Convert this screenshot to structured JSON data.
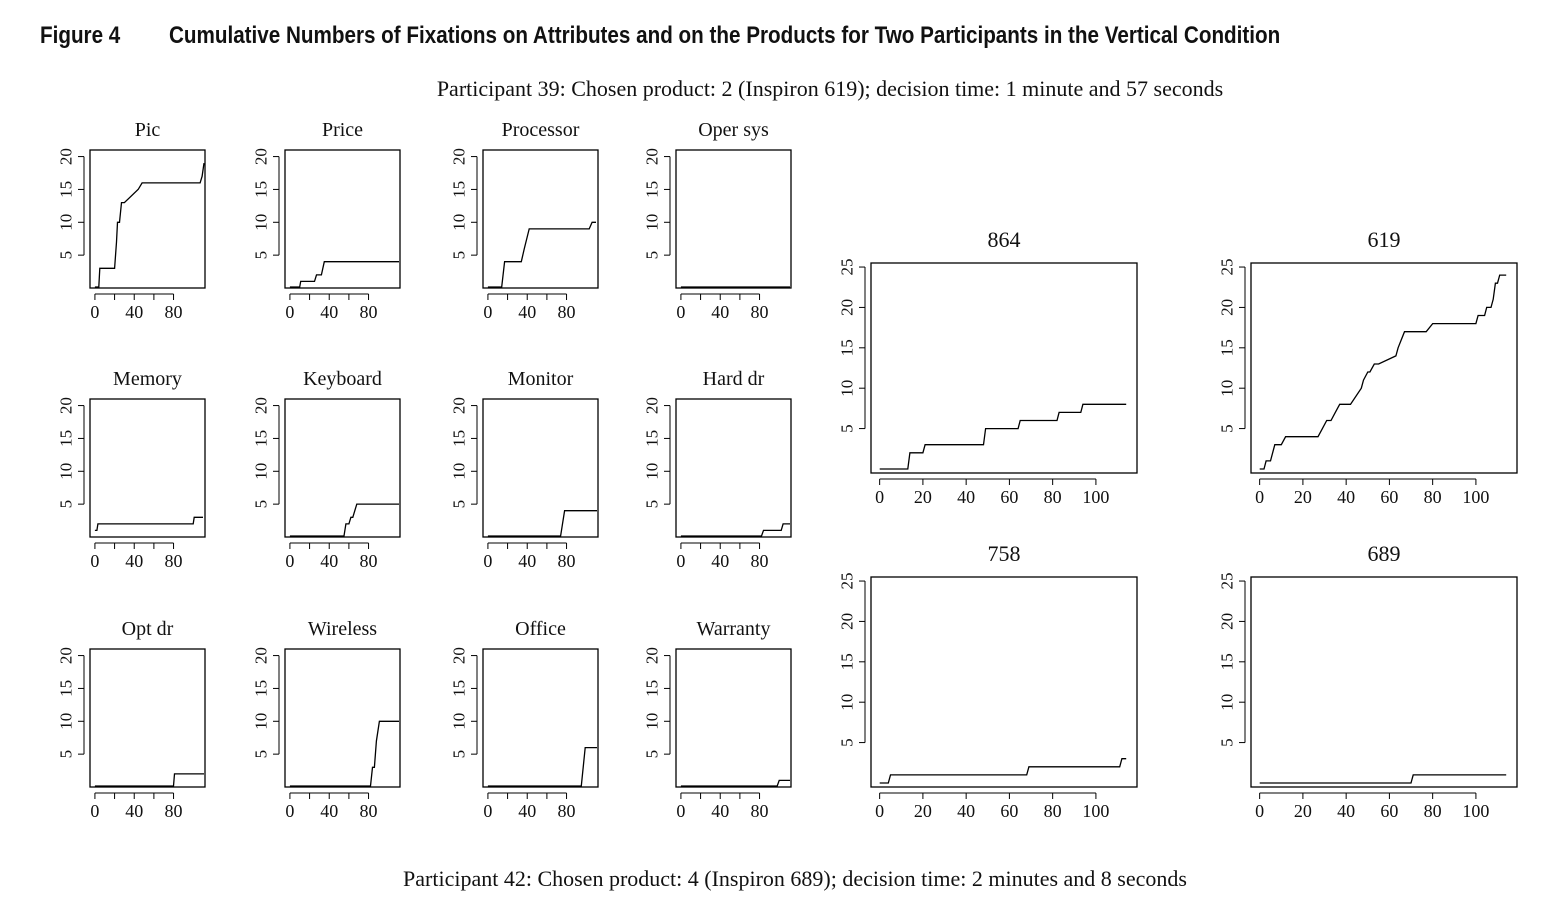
{
  "figure": {
    "label": "Figure 4",
    "title": "Cumulative Numbers of Fixations on Attributes and on the Products for Two Participants in the Vertical Condition"
  },
  "captions": {
    "top": "Participant 39: Chosen product: 2 (Inspiron 619); decision time: 1 minute and 57 seconds",
    "bottom": "Participant 42: Chosen product: 4 (Inspiron 689); decision time: 2 minutes and 8 seconds"
  },
  "chart_data": [
    {
      "type": "line",
      "title": "Pic",
      "xlim": [
        -5,
        112
      ],
      "ylim": [
        0,
        21
      ],
      "xticks": [
        0,
        40,
        80
      ],
      "yticks": [
        5,
        10,
        15,
        20
      ],
      "series": [
        {
          "x": [
            0,
            4,
            5,
            20,
            22,
            23,
            25,
            27,
            30,
            44,
            48,
            52,
            107,
            109,
            111
          ],
          "y": [
            0,
            0,
            3,
            3,
            7,
            10,
            10,
            13,
            13,
            15,
            16,
            16,
            16,
            17,
            19
          ]
        }
      ]
    },
    {
      "type": "line",
      "title": "Price",
      "xlim": [
        -5,
        112
      ],
      "ylim": [
        0,
        21
      ],
      "xticks": [
        0,
        40,
        80
      ],
      "yticks": [
        5,
        10,
        15,
        20
      ],
      "series": [
        {
          "x": [
            0,
            10,
            11,
            25,
            27,
            32,
            35,
            115
          ],
          "y": [
            0,
            0,
            1,
            1,
            2,
            2,
            4,
            4
          ]
        }
      ]
    },
    {
      "type": "line",
      "title": "Processor",
      "xlim": [
        -5,
        112
      ],
      "ylim": [
        0,
        21
      ],
      "xticks": [
        0,
        40,
        80
      ],
      "yticks": [
        5,
        10,
        15,
        20
      ],
      "series": [
        {
          "x": [
            0,
            14,
            17,
            34,
            37,
            42,
            103,
            106,
            110
          ],
          "y": [
            0,
            0,
            4,
            4,
            6,
            9,
            9,
            10,
            10
          ]
        }
      ]
    },
    {
      "type": "line",
      "title": "Oper sys",
      "xlim": [
        -5,
        112
      ],
      "ylim": [
        0,
        21
      ],
      "xticks": [
        0,
        40,
        80
      ],
      "yticks": [
        5,
        10,
        15,
        20
      ],
      "series": [
        {
          "x": [
            0,
            118
          ],
          "y": [
            0,
            0
          ]
        }
      ]
    },
    {
      "type": "line",
      "title": "Memory",
      "xlim": [
        -5,
        112
      ],
      "ylim": [
        0,
        21
      ],
      "xticks": [
        0,
        40,
        80
      ],
      "yticks": [
        5,
        10,
        15,
        20
      ],
      "series": [
        {
          "x": [
            0,
            2,
            3,
            100,
            101,
            110
          ],
          "y": [
            1,
            1,
            2,
            2,
            3,
            3
          ]
        }
      ]
    },
    {
      "type": "line",
      "title": "Keyboard",
      "xlim": [
        -5,
        112
      ],
      "ylim": [
        0,
        21
      ],
      "xticks": [
        0,
        40,
        80
      ],
      "yticks": [
        5,
        10,
        15,
        20
      ],
      "series": [
        {
          "x": [
            0,
            55,
            57,
            60,
            62,
            64,
            68,
            115
          ],
          "y": [
            0,
            0,
            2,
            2,
            3,
            3,
            5,
            5
          ]
        }
      ]
    },
    {
      "type": "line",
      "title": "Monitor",
      "xlim": [
        -5,
        112
      ],
      "ylim": [
        0,
        21
      ],
      "xticks": [
        0,
        40,
        80
      ],
      "yticks": [
        5,
        10,
        15,
        20
      ],
      "series": [
        {
          "x": [
            0,
            74,
            78,
            115
          ],
          "y": [
            0,
            0,
            4,
            4
          ]
        }
      ]
    },
    {
      "type": "line",
      "title": "Hard dr",
      "xlim": [
        -5,
        112
      ],
      "ylim": [
        0,
        21
      ],
      "xticks": [
        0,
        40,
        80
      ],
      "yticks": [
        5,
        10,
        15,
        20
      ],
      "series": [
        {
          "x": [
            0,
            82,
            84,
            102,
            104,
            115
          ],
          "y": [
            0,
            0,
            1,
            1,
            2,
            2
          ]
        }
      ]
    },
    {
      "type": "line",
      "title": "Opt dr",
      "xlim": [
        -5,
        112
      ],
      "ylim": [
        0,
        21
      ],
      "xticks": [
        0,
        40,
        80
      ],
      "yticks": [
        5,
        10,
        15,
        20
      ],
      "series": [
        {
          "x": [
            0,
            80,
            81,
            115
          ],
          "y": [
            0,
            0,
            2,
            2
          ]
        }
      ]
    },
    {
      "type": "line",
      "title": "Wireless",
      "xlim": [
        -5,
        112
      ],
      "ylim": [
        0,
        21
      ],
      "xticks": [
        0,
        40,
        80
      ],
      "yticks": [
        5,
        10,
        15,
        20
      ],
      "series": [
        {
          "x": [
            0,
            82,
            84,
            86,
            88,
            91,
            114
          ],
          "y": [
            0,
            0,
            3,
            3,
            7,
            10,
            10
          ]
        }
      ]
    },
    {
      "type": "line",
      "title": "Office",
      "xlim": [
        -5,
        112
      ],
      "ylim": [
        0,
        21
      ],
      "xticks": [
        0,
        40,
        80
      ],
      "yticks": [
        5,
        10,
        15,
        20
      ],
      "series": [
        {
          "x": [
            0,
            95,
            99,
            112
          ],
          "y": [
            0,
            0,
            6,
            6
          ]
        }
      ]
    },
    {
      "type": "line",
      "title": "Warranty",
      "xlim": [
        -5,
        112
      ],
      "ylim": [
        0,
        21
      ],
      "xticks": [
        0,
        40,
        80
      ],
      "yticks": [
        5,
        10,
        15,
        20
      ],
      "series": [
        {
          "x": [
            0,
            98,
            100,
            112
          ],
          "y": [
            0,
            0,
            1,
            1
          ]
        }
      ]
    },
    {
      "type": "line",
      "title": "864",
      "xlim": [
        -4,
        119
      ],
      "ylim": [
        -0.5,
        25.5
      ],
      "xticks": [
        0,
        20,
        40,
        60,
        80,
        100
      ],
      "yticks": [
        5,
        10,
        15,
        20,
        25
      ],
      "series": [
        {
          "x": [
            0,
            13,
            14,
            20,
            21,
            48,
            49,
            64,
            65,
            82,
            83,
            93,
            94,
            114
          ],
          "y": [
            0,
            0,
            2,
            2,
            3,
            3,
            5,
            5,
            6,
            6,
            7,
            7,
            8,
            8
          ]
        }
      ]
    },
    {
      "type": "line",
      "title": "619",
      "xlim": [
        -4,
        119
      ],
      "ylim": [
        -0.5,
        25.5
      ],
      "xticks": [
        0,
        20,
        40,
        60,
        80,
        100
      ],
      "yticks": [
        5,
        10,
        15,
        20,
        25
      ],
      "series": [
        {
          "x": [
            0,
            2,
            3,
            5,
            7,
            10,
            12,
            27,
            29,
            31,
            33,
            35,
            37,
            40,
            42,
            47,
            48,
            50,
            51,
            53,
            55,
            63,
            64,
            67,
            70,
            77,
            80,
            100,
            101,
            104,
            105,
            107,
            108,
            109,
            110,
            111,
            114
          ],
          "y": [
            0,
            0,
            1,
            1,
            3,
            3,
            4,
            4,
            5,
            6,
            6,
            7,
            8,
            8,
            8,
            10,
            11,
            12,
            12,
            13,
            13,
            14,
            15,
            17,
            17,
            17,
            18,
            18,
            19,
            19,
            20,
            20,
            21,
            23,
            23,
            24,
            24
          ]
        }
      ]
    },
    {
      "type": "line",
      "title": "758",
      "xlim": [
        -4,
        119
      ],
      "ylim": [
        -0.5,
        25.5
      ],
      "xticks": [
        0,
        20,
        40,
        60,
        80,
        100
      ],
      "yticks": [
        5,
        10,
        15,
        20,
        25
      ],
      "series": [
        {
          "x": [
            0,
            4,
            5,
            68,
            69,
            111,
            112,
            114
          ],
          "y": [
            0,
            0,
            1,
            1,
            2,
            2,
            3,
            3
          ]
        }
      ]
    },
    {
      "type": "line",
      "title": "689",
      "xlim": [
        -4,
        119
      ],
      "ylim": [
        -0.5,
        25.5
      ],
      "xticks": [
        0,
        20,
        40,
        60,
        80,
        100
      ],
      "yticks": [
        5,
        10,
        15,
        20,
        25
      ],
      "series": [
        {
          "x": [
            0,
            70,
            71,
            114
          ],
          "y": [
            0,
            0,
            1,
            1
          ]
        }
      ]
    }
  ]
}
